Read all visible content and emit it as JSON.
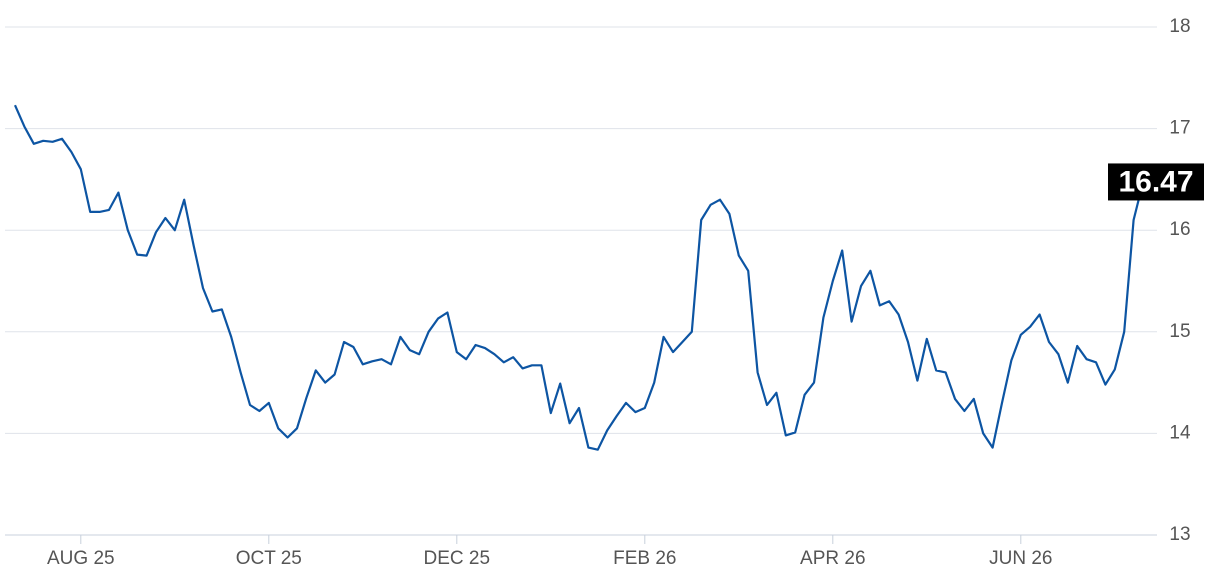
{
  "chart_data": {
    "type": "line",
    "categories": [
      null,
      null,
      null,
      null,
      null,
      null,
      null,
      "AUG 25",
      null,
      null,
      null,
      null,
      null,
      null,
      null,
      null,
      null,
      null,
      null,
      null,
      null,
      null,
      null,
      null,
      null,
      null,
      null,
      "OCT 25",
      null,
      null,
      null,
      null,
      null,
      null,
      null,
      null,
      null,
      null,
      null,
      null,
      null,
      null,
      null,
      null,
      null,
      null,
      null,
      "DEC 25",
      null,
      null,
      null,
      null,
      null,
      null,
      null,
      null,
      null,
      null,
      null,
      null,
      null,
      null,
      null,
      null,
      null,
      null,
      null,
      "FEB 26",
      null,
      null,
      null,
      null,
      null,
      null,
      null,
      null,
      null,
      null,
      null,
      null,
      null,
      null,
      null,
      null,
      null,
      null,
      null,
      "APR 26",
      null,
      null,
      null,
      null,
      null,
      null,
      null,
      null,
      null,
      null,
      null,
      null,
      null,
      null,
      null,
      null,
      null,
      null,
      null,
      "JUN 26",
      null,
      null,
      null,
      null,
      null,
      null,
      null,
      null,
      null,
      null,
      null,
      null,
      null
    ],
    "values": [
      17.23,
      17.02,
      16.85,
      16.88,
      16.87,
      16.9,
      16.77,
      16.6,
      16.18,
      16.18,
      16.2,
      16.37,
      16.0,
      15.76,
      15.75,
      15.98,
      16.12,
      16.0,
      16.3,
      15.85,
      15.43,
      15.2,
      15.22,
      14.95,
      14.6,
      14.28,
      14.22,
      14.3,
      14.05,
      13.96,
      14.05,
      14.35,
      14.62,
      14.5,
      14.58,
      14.9,
      14.85,
      14.68,
      14.71,
      14.73,
      14.68,
      14.95,
      14.82,
      14.78,
      15.0,
      15.13,
      15.19,
      14.8,
      14.73,
      14.87,
      14.84,
      14.78,
      14.7,
      14.75,
      14.64,
      14.67,
      14.67,
      14.2,
      14.49,
      14.1,
      14.25,
      13.86,
      13.84,
      14.03,
      14.17,
      14.3,
      14.21,
      14.25,
      14.5,
      14.95,
      14.8,
      14.9,
      15.0,
      16.1,
      16.25,
      16.3,
      16.16,
      15.75,
      15.6,
      14.6,
      14.28,
      14.4,
      13.98,
      14.01,
      14.38,
      14.5,
      15.14,
      15.5,
      15.8,
      15.1,
      15.45,
      15.6,
      15.26,
      15.3,
      15.17,
      14.9,
      14.52,
      14.93,
      14.62,
      14.6,
      14.34,
      14.22,
      14.34,
      14.0,
      13.86,
      14.3,
      14.72,
      14.97,
      15.05,
      15.17,
      14.9,
      14.78,
      14.5,
      14.86,
      14.73,
      14.7,
      14.48,
      14.63,
      15.0,
      16.1,
      16.47
    ],
    "color": "#0d55a3",
    "ylim": [
      13,
      18
    ],
    "yticks": [
      13,
      14,
      15,
      16,
      17,
      18
    ],
    "grid": true,
    "last_value_badge": true
  }
}
